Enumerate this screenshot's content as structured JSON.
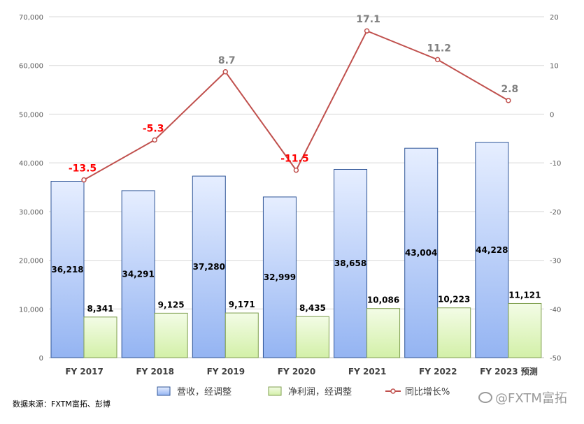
{
  "chart_data": {
    "type": "bar",
    "categories": [
      "FY 2017",
      "FY 2018",
      "FY 2019",
      "FY 2020",
      "FY 2021",
      "FY 2022",
      "FY 2023 预测"
    ],
    "series": [
      {
        "name": "营收，经调整",
        "kind": "bar",
        "axis": "left",
        "values": [
          36218,
          34291,
          37280,
          32999,
          38658,
          43004,
          44228
        ],
        "labels": [
          "36,218",
          "34,291",
          "37,280",
          "32,999",
          "38,658",
          "43,004",
          "44,228"
        ]
      },
      {
        "name": "净利润，经调整",
        "kind": "bar",
        "axis": "left",
        "values": [
          8341,
          9125,
          9171,
          8435,
          10086,
          10223,
          11121
        ],
        "labels": [
          "8,341",
          "9,125",
          "9,171",
          "8,435",
          "10,086",
          "10,223",
          "11,121"
        ]
      },
      {
        "name": "同比增长%",
        "kind": "line",
        "axis": "right",
        "values": [
          -13.5,
          -5.3,
          8.7,
          -11.5,
          17.1,
          11.2,
          2.8
        ],
        "labels": [
          "-13.5",
          "-5.3",
          "8.7",
          "-11.5",
          "17.1",
          "11.2",
          "2.8"
        ]
      }
    ],
    "y_left": {
      "min": 0,
      "max": 70000,
      "ticks": [
        "0",
        "10,000",
        "20,000",
        "30,000",
        "40,000",
        "50,000",
        "60,000",
        "70,000"
      ]
    },
    "y_right": {
      "min": -50,
      "max": 20,
      "ticks": [
        "-50",
        "-40",
        "-30",
        "-20",
        "-10",
        "0",
        "10",
        "20"
      ]
    },
    "grid": true,
    "legend": "bottom",
    "colors": {
      "revenue_bar": "#9dbcf5",
      "revenue_edge": "#2f5597",
      "profit_bar": "#d9f2b5",
      "profit_edge": "#7f9f4f",
      "line": "#c0504d",
      "negative_label": "#ff0000",
      "positive_label": "#808080"
    }
  },
  "source": "数据来源：FXTM富拓、彭博",
  "watermark": "@FXTM富拓"
}
